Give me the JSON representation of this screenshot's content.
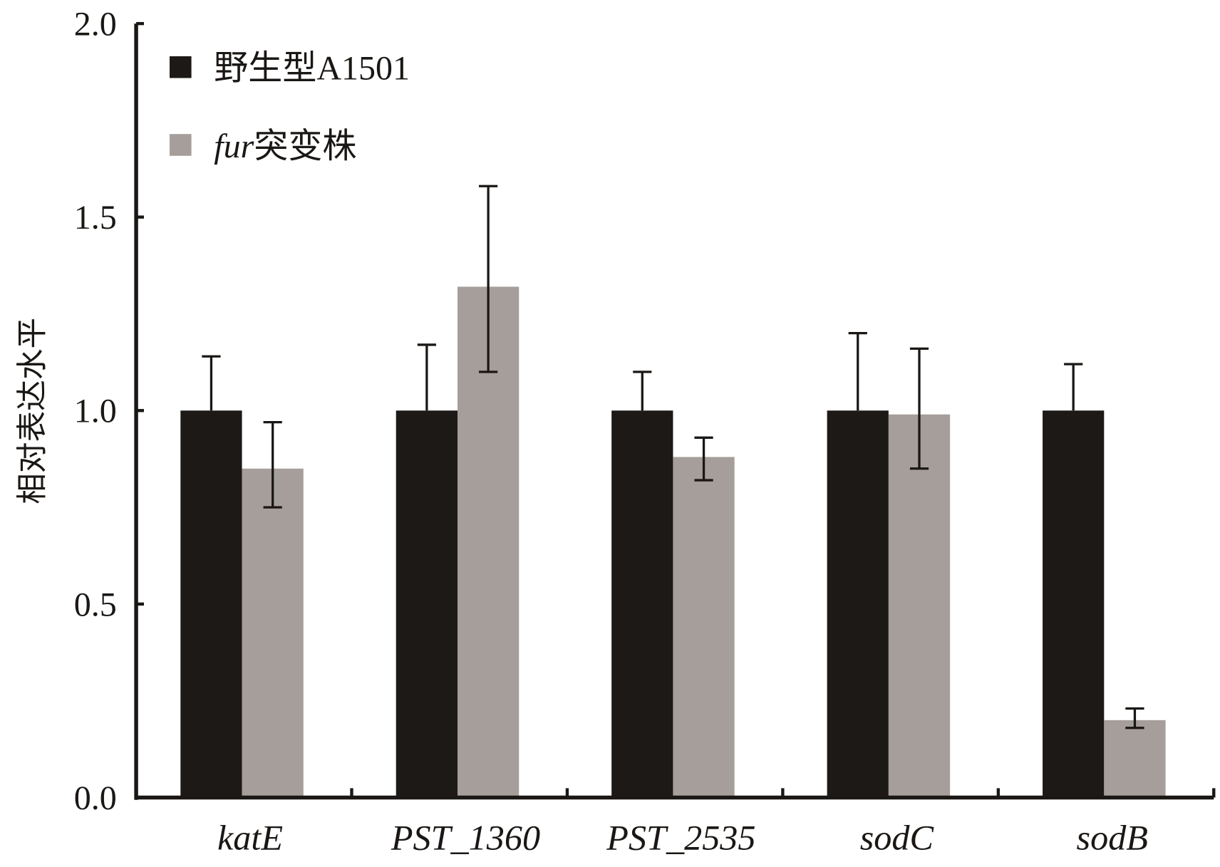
{
  "chart_data": {
    "type": "bar",
    "title": "",
    "xlabel": "",
    "ylabel": "相对表达水平",
    "ylim": [
      0,
      2.0
    ],
    "yticks": [
      "0.0",
      "0.5",
      "1.0",
      "1.5",
      "2.0"
    ],
    "categories": [
      "katE",
      "PST_1360",
      "PST_2535",
      "sodC",
      "sodB"
    ],
    "legend_position": "top-left",
    "series": [
      {
        "name": "野生型A1501",
        "name_italic": "",
        "name_rest": "野生型A1501",
        "color": "#1c1916",
        "values": [
          1.0,
          1.0,
          1.0,
          1.0,
          1.0
        ],
        "error_upper": [
          1.14,
          1.17,
          1.1,
          1.2,
          1.12
        ],
        "error_lower": [
          1.0,
          1.0,
          1.0,
          1.0,
          1.0
        ]
      },
      {
        "name": "fur突变株",
        "name_italic": "fur",
        "name_rest": "突变株",
        "color": "#a59e9a",
        "values": [
          0.85,
          1.32,
          0.88,
          0.99,
          0.2
        ],
        "error_upper": [
          0.97,
          1.58,
          0.93,
          1.16,
          0.23
        ],
        "error_lower": [
          0.75,
          1.1,
          0.82,
          0.85,
          0.18
        ]
      }
    ]
  }
}
